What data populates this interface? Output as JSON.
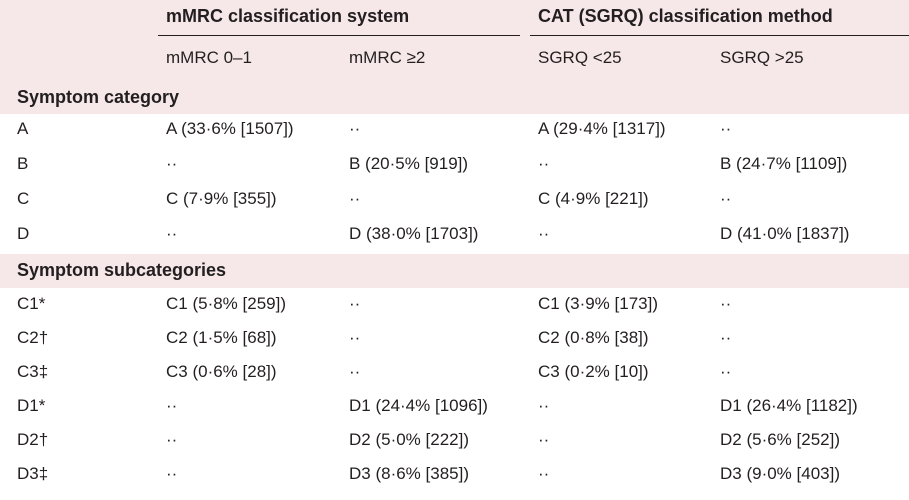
{
  "header": {
    "group1": "mMRC classification system",
    "group2": "CAT (SGRQ) classification method",
    "columns": [
      "mMRC 0–1",
      "mMRC ≥2",
      "SGRQ <25",
      "SGRQ >25"
    ]
  },
  "sections": [
    {
      "title": "Symptom category",
      "rows": [
        {
          "label": "A",
          "cells": [
            "A (33·6% [1507])",
            "··",
            "A (29·4% [1317])",
            "··"
          ]
        },
        {
          "label": "B",
          "cells": [
            "··",
            "B (20·5% [919])",
            "··",
            "B (24·7% [1109])"
          ]
        },
        {
          "label": "C",
          "cells": [
            "C (7·9% [355])",
            "··",
            "C (4·9% [221])",
            "··"
          ]
        },
        {
          "label": "D",
          "cells": [
            "··",
            "D (38·0% [1703])",
            "··",
            "D (41·0% [1837])"
          ]
        }
      ]
    },
    {
      "title": "Symptom subcategories",
      "rows": [
        {
          "label": "C1*",
          "cells": [
            "C1 (5·8% [259])",
            "··",
            "C1 (3·9% [173])",
            "··"
          ]
        },
        {
          "label": "C2†",
          "cells": [
            "C2 (1·5% [68])",
            "··",
            "C2 (0·8% [38])",
            "··"
          ]
        },
        {
          "label": "C3‡",
          "cells": [
            "C3 (0·6% [28])",
            "··",
            "C3 (0·2% [10])",
            "··"
          ]
        },
        {
          "label": "D1*",
          "cells": [
            "··",
            "D1 (24·4% [1096])",
            "··",
            "D1 (26·4% [1182])"
          ]
        },
        {
          "label": "D2†",
          "cells": [
            "··",
            "D2 (5·0% [222])",
            "··",
            "D2 (5·6% [252])"
          ]
        },
        {
          "label": "D3‡",
          "cells": [
            "··",
            "D3 (8·6% [385])",
            "··",
            "D3 (9·0% [403])"
          ]
        }
      ]
    }
  ]
}
